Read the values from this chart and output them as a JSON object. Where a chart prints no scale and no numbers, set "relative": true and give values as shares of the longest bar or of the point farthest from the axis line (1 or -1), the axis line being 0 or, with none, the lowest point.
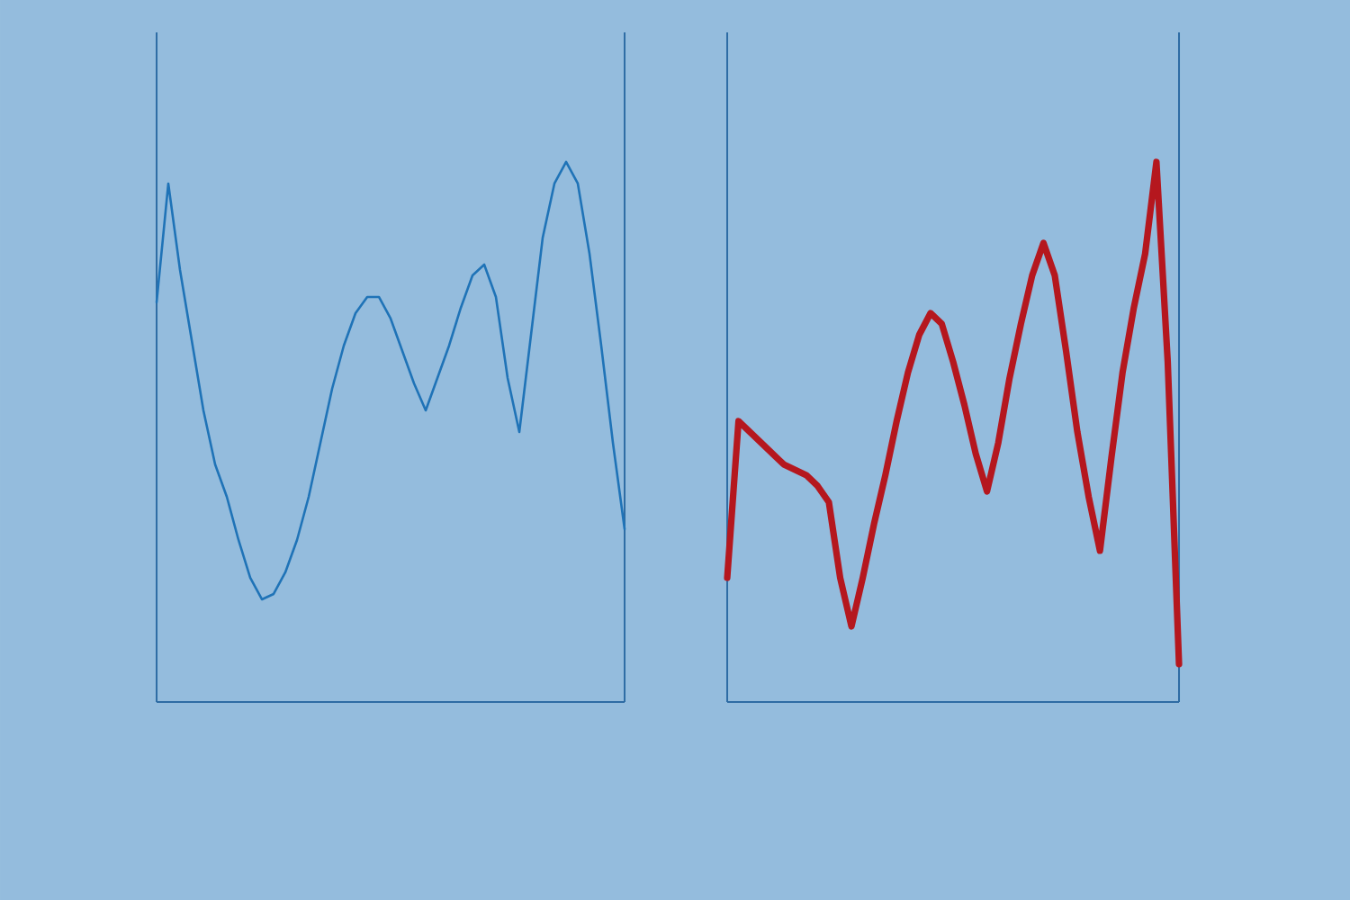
{
  "chart_data": [
    {
      "type": "line",
      "relative": true,
      "categories": [
        null,
        null,
        null,
        null,
        null,
        null,
        null,
        null,
        null,
        null,
        null,
        null,
        null,
        null,
        null,
        null,
        null,
        null,
        null,
        null,
        null,
        null,
        null,
        null,
        null,
        null,
        null,
        null,
        null,
        null,
        null,
        null,
        null,
        null,
        null,
        null,
        null,
        null,
        null,
        null,
        null
      ],
      "series": [
        {
          "color": "#1f73b7",
          "values": [
            0.74,
            0.96,
            0.8,
            0.67,
            0.54,
            0.44,
            0.38,
            0.3,
            0.23,
            0.19,
            0.2,
            0.24,
            0.3,
            0.38,
            0.48,
            0.58,
            0.66,
            0.72,
            0.75,
            0.75,
            0.71,
            0.65,
            0.59,
            0.54,
            0.6,
            0.66,
            0.73,
            0.79,
            0.81,
            0.75,
            0.6,
            0.5,
            0.68,
            0.86,
            0.96,
            1.0,
            0.96,
            0.83,
            0.66,
            0.48,
            0.32
          ]
        }
      ]
    },
    {
      "type": "line",
      "relative": true,
      "categories": [
        null,
        null,
        null,
        null,
        null,
        null,
        null,
        null,
        null,
        null,
        null,
        null,
        null,
        null,
        null,
        null,
        null,
        null,
        null,
        null,
        null,
        null,
        null,
        null,
        null,
        null,
        null,
        null,
        null,
        null,
        null,
        null,
        null,
        null,
        null,
        null,
        null,
        null,
        null,
        null,
        null
      ],
      "series": [
        {
          "color": "#b5171e",
          "values": [
            0.23,
            0.52,
            0.5,
            0.48,
            0.46,
            0.44,
            0.43,
            0.42,
            0.4,
            0.37,
            0.23,
            0.14,
            0.23,
            0.33,
            0.42,
            0.52,
            0.61,
            0.68,
            0.72,
            0.7,
            0.63,
            0.55,
            0.46,
            0.39,
            0.48,
            0.6,
            0.7,
            0.79,
            0.85,
            0.79,
            0.65,
            0.5,
            0.38,
            0.28,
            0.45,
            0.61,
            0.73,
            0.83,
            1.0,
            0.63,
            0.07
          ]
        }
      ]
    }
  ]
}
